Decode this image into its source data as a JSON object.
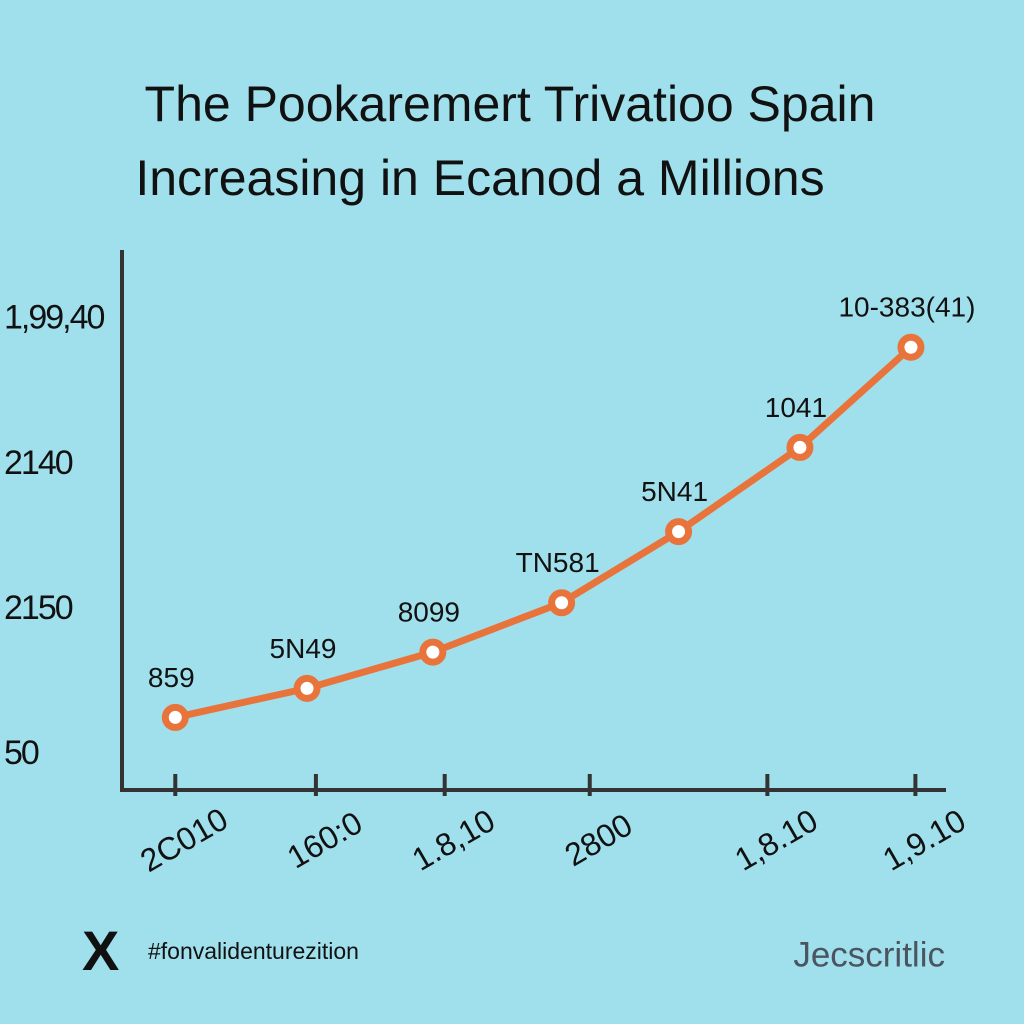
{
  "chart_data": {
    "type": "line",
    "title": [
      "The Pookaremert Trivatioo Spain",
      "Increasing in Ecanod a Millions"
    ],
    "x": [
      0,
      0.89,
      1.74,
      2.61,
      3.4,
      4.22,
      4.97
    ],
    "series": [
      {
        "color": "#e8743b",
        "values": [
          0.26,
          0.46,
          0.71,
          1.05,
          1.54,
          2.12,
          2.81
        ],
        "point_labels": [
          "859",
          "5N49",
          "8099",
          "TN581",
          "5N41",
          "1041",
          "10-383(41)"
        ]
      }
    ],
    "xlim": [
      -0.36,
      5.2
    ],
    "xticks": [
      {
        "value": 0,
        "label": "2C010"
      },
      {
        "value": 0.95,
        "label": "160:0"
      },
      {
        "value": 1.82,
        "label": "1.8,10"
      },
      {
        "value": 2.8,
        "label": "2800"
      },
      {
        "value": 4.0,
        "label": "1,8.10"
      },
      {
        "value": 5.0,
        "label": "1,9.10"
      }
    ],
    "ylim": [
      -0.24,
      3.48
    ],
    "yticks": [
      {
        "value": 0,
        "label": "50"
      },
      {
        "value": 1,
        "label": "2150"
      },
      {
        "value": 2,
        "label": "2140"
      },
      {
        "value": 3,
        "label": "1,99,40"
      }
    ],
    "grid": false
  },
  "footer": {
    "logo": "X",
    "hashtag": "#fonvalidenturezition",
    "brand": "Jecscritlic"
  }
}
